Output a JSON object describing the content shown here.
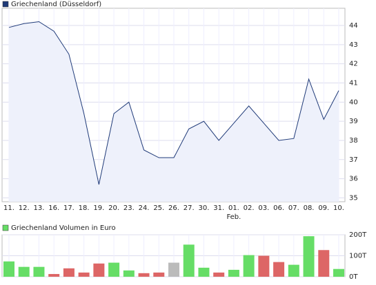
{
  "chart_data": [
    {
      "type": "line",
      "legend": "Griechenland (Düsseldorf)",
      "categories": [
        "11.",
        "12.",
        "13.",
        "16.",
        "17.",
        "18.",
        "19.",
        "20.",
        "23.",
        "24.",
        "25.",
        "26.",
        "27.",
        "30.",
        "31.",
        "01.",
        "02.",
        "03.",
        "06.",
        "07.",
        "08.",
        "09.",
        "10."
      ],
      "x_sublabels": [
        null,
        null,
        null,
        null,
        null,
        null,
        null,
        null,
        null,
        null,
        null,
        null,
        null,
        null,
        null,
        "Feb.",
        null,
        null,
        null,
        null,
        null,
        null,
        null
      ],
      "series": [
        {
          "name": "Griechenland (Düsseldorf)",
          "color": "#1f3a78",
          "fill": "#eef1fb",
          "values": [
            43.9,
            44.1,
            44.2,
            43.7,
            42.5,
            39.4,
            35.7,
            39.4,
            40.0,
            37.5,
            37.1,
            37.1,
            38.6,
            39.0,
            38.0,
            38.9,
            39.8,
            38.9,
            38.0,
            38.1,
            41.2,
            39.1,
            40.6
          ]
        }
      ],
      "ylim": [
        34.8,
        44.9
      ],
      "yticks": [
        35,
        36,
        37,
        38,
        39,
        40,
        41,
        42,
        43,
        44
      ],
      "grid": true
    },
    {
      "type": "bar",
      "legend": "Griechenland Volumen in Euro",
      "legend_color": "#66dd66",
      "values": [
        73,
        47,
        47,
        13,
        40,
        20,
        63,
        67,
        30,
        17,
        20,
        67,
        153,
        43,
        20,
        33,
        103,
        100,
        70,
        57,
        193,
        127,
        37
      ],
      "colors": [
        "#66dd66",
        "#66dd66",
        "#66dd66",
        "#dd6666",
        "#dd6666",
        "#dd6666",
        "#dd6666",
        "#66dd66",
        "#66dd66",
        "#dd6666",
        "#dd6666",
        "#bbbbbb",
        "#66dd66",
        "#66dd66",
        "#dd6666",
        "#66dd66",
        "#66dd66",
        "#dd6666",
        "#dd6666",
        "#66dd66",
        "#66dd66",
        "#dd6666",
        "#66dd66"
      ],
      "ylim": [
        0,
        200
      ],
      "yticks": [
        {
          "value": 0,
          "label": "0T"
        },
        {
          "value": 100,
          "label": "100T"
        },
        {
          "value": 200,
          "label": "200T"
        }
      ],
      "grid": true
    }
  ]
}
